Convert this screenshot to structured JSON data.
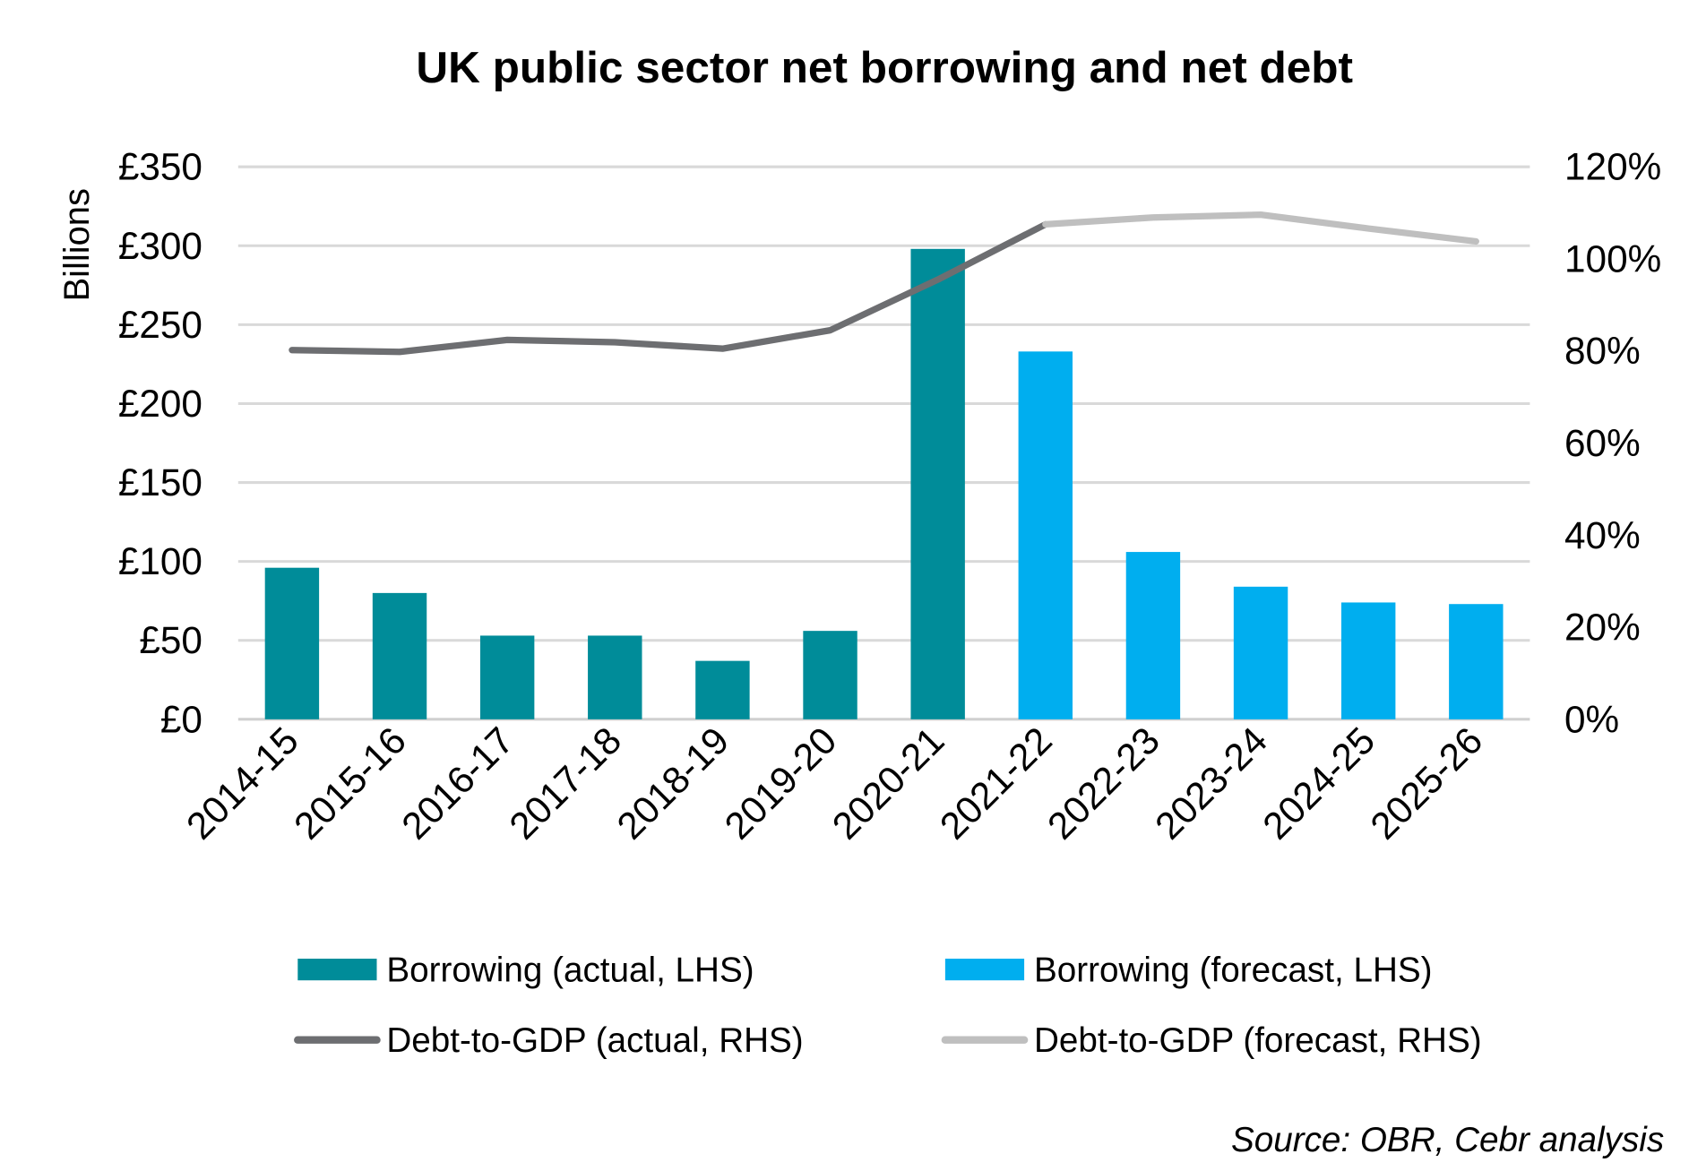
{
  "chart_data": {
    "type": "bar+line",
    "title": "UK public sector net borrowing and net debt",
    "ylabel": "Billions",
    "ylim": [
      0,
      350
    ],
    "yticks": [
      "£0",
      "£50",
      "£100",
      "£150",
      "£200",
      "£250",
      "£300",
      "£350"
    ],
    "y2lim": [
      0,
      120
    ],
    "y2ticks": [
      "0%",
      "20%",
      "40%",
      "60%",
      "80%",
      "100%",
      "120%"
    ],
    "grid": true,
    "categories": [
      "2014-15",
      "2015-16",
      "2016-17",
      "2017-18",
      "2018-19",
      "2019-20",
      "2020-21",
      "2021-22",
      "2022-23",
      "2023-24",
      "2024-25",
      "2025-26"
    ],
    "series": [
      {
        "name": "Borrowing (actual, LHS)",
        "kind": "bar",
        "axis": "left",
        "color": "#008C99",
        "values": [
          96,
          80,
          53,
          53,
          37,
          56,
          298,
          null,
          null,
          null,
          null,
          null
        ]
      },
      {
        "name": "Borrowing (forecast, LHS)",
        "kind": "bar",
        "axis": "left",
        "color": "#00AEEF",
        "values": [
          null,
          null,
          null,
          null,
          null,
          null,
          null,
          233,
          106,
          84,
          74,
          73
        ]
      },
      {
        "name": "Debt-to-GDP (actual, RHS)",
        "kind": "line",
        "axis": "right",
        "color": "#6D6E71",
        "values": [
          80.2,
          79.8,
          82.4,
          81.9,
          80.5,
          84.5,
          95.5,
          107.5,
          null,
          null,
          null,
          null
        ]
      },
      {
        "name": "Debt-to-GDP (forecast, RHS)",
        "kind": "line",
        "axis": "right",
        "color": "#BFBFBF",
        "values": [
          null,
          null,
          null,
          null,
          null,
          null,
          null,
          107.5,
          109,
          109.6,
          106.6,
          103.8
        ]
      }
    ],
    "legend_position": "bottom",
    "source": "Source: OBR, Cebr analysis"
  }
}
